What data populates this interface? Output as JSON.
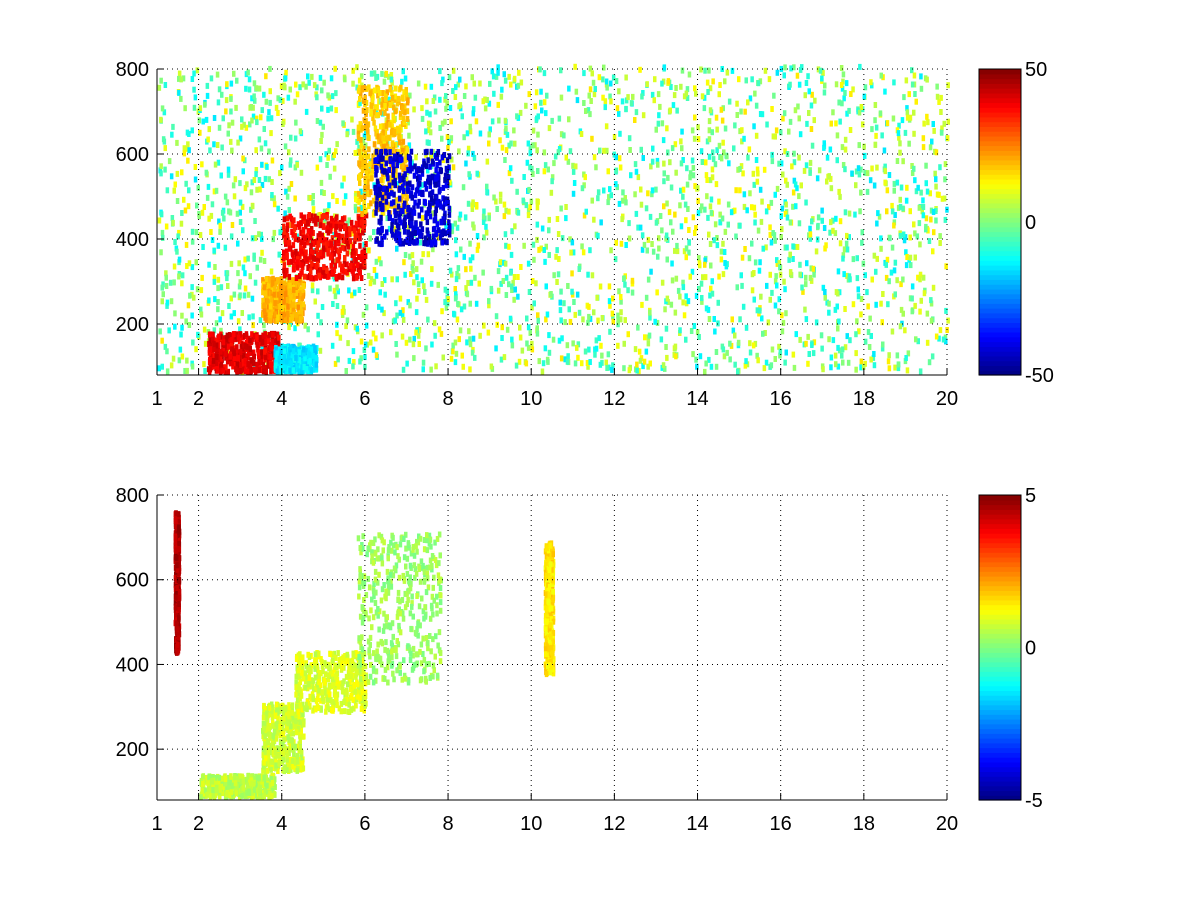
{
  "chart_data": [
    {
      "type": "heatmap",
      "title": "",
      "xlabel": "",
      "ylabel": "",
      "xlim": [
        1,
        20
      ],
      "ylim": [
        80,
        800
      ],
      "x_ticks": [
        1,
        2,
        4,
        6,
        8,
        10,
        12,
        14,
        16,
        18,
        20
      ],
      "y_ticks": [
        200,
        400,
        600,
        800
      ],
      "grid": true,
      "colormap": "jet",
      "clim": [
        -50,
        50
      ],
      "colorbar_ticks": [
        -50,
        0,
        50
      ],
      "features": [
        {
          "x": [
            2.2,
            3.9
          ],
          "y": [
            80,
            170
          ],
          "value": 40
        },
        {
          "x": [
            3.5,
            4.5
          ],
          "y": [
            200,
            300
          ],
          "value": 20
        },
        {
          "x": [
            4.0,
            6.0
          ],
          "y": [
            300,
            450
          ],
          "value": 38
        },
        {
          "x": [
            5.8,
            7.0
          ],
          "y": [
            450,
            750
          ],
          "value": 18
        },
        {
          "x": [
            6.2,
            8.0
          ],
          "y": [
            380,
            600
          ],
          "value": -42
        },
        {
          "x": [
            3.8,
            4.8
          ],
          "y": [
            80,
            140
          ],
          "value": -15
        }
      ],
      "background_noise": {
        "x": [
          1,
          20
        ],
        "y": [
          80,
          800
        ],
        "values": [
          -15,
          15
        ]
      }
    },
    {
      "type": "heatmap",
      "title": "",
      "xlabel": "",
      "ylabel": "",
      "xlim": [
        1,
        20
      ],
      "ylim": [
        80,
        800
      ],
      "x_ticks": [
        1,
        2,
        4,
        6,
        8,
        10,
        12,
        14,
        16,
        18,
        20
      ],
      "y_ticks": [
        200,
        400,
        600,
        800
      ],
      "grid": true,
      "colormap": "jet",
      "clim": [
        -5,
        5
      ],
      "colorbar_ticks": [
        -5,
        0,
        5
      ],
      "features": [
        {
          "x": [
            2.0,
            3.8
          ],
          "y": [
            80,
            130
          ],
          "value": 0.6
        },
        {
          "x": [
            3.5,
            4.5
          ],
          "y": [
            140,
            300
          ],
          "value": 0.8
        },
        {
          "x": [
            4.3,
            6.0
          ],
          "y": [
            280,
            420
          ],
          "value": 0.9
        },
        {
          "x": [
            5.8,
            7.8
          ],
          "y": [
            350,
            700
          ],
          "value": 0.3
        },
        {
          "x": [
            1.4,
            1.5
          ],
          "y": [
            420,
            750
          ],
          "value": 4.5
        },
        {
          "x": [
            10.3,
            10.5
          ],
          "y": [
            370,
            680
          ],
          "value": 1.5
        }
      ]
    }
  ]
}
